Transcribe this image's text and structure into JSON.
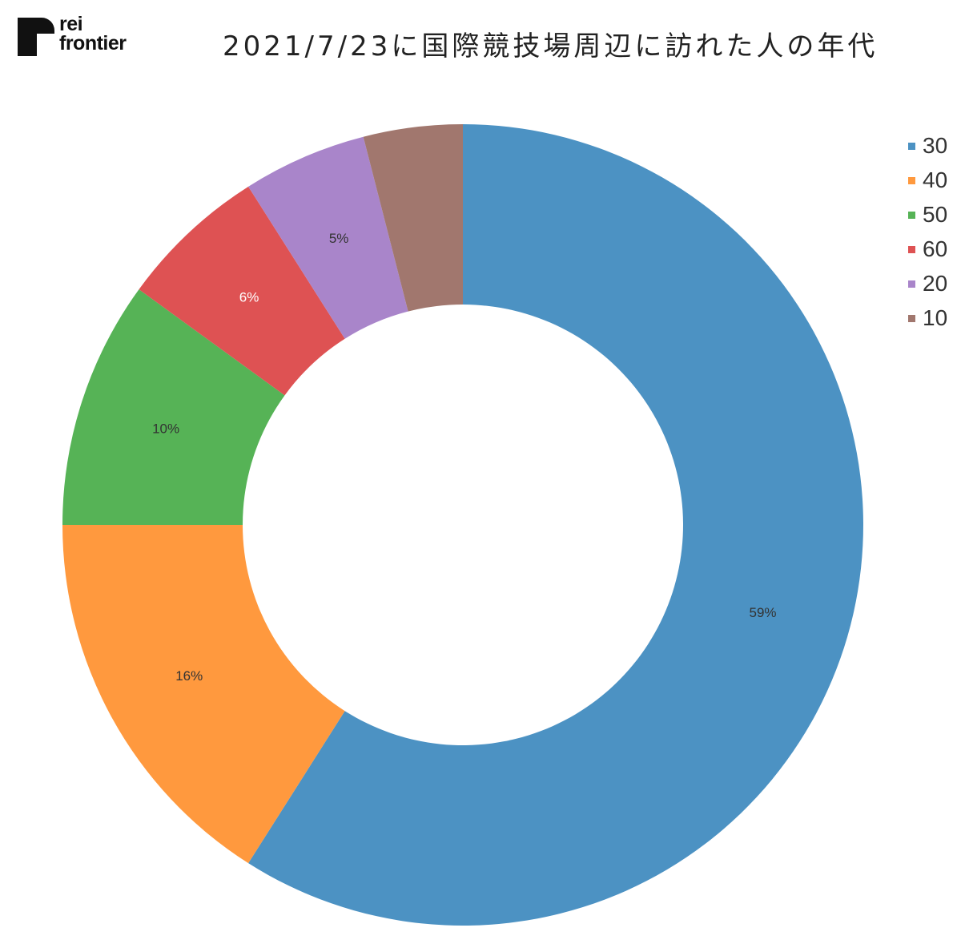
{
  "logo": {
    "line1": "rei",
    "line2": "frontier",
    "color": "#111111"
  },
  "chart_data": {
    "type": "pie",
    "style": "donut",
    "title": "2021/7/23に国際競技場周辺に訪れた人の年代",
    "legend_position": "right",
    "slices": [
      {
        "label": "30",
        "value": 59,
        "display": "59%",
        "color": "#4c92c3"
      },
      {
        "label": "40",
        "value": 16,
        "display": "16%",
        "color": "#ff993e"
      },
      {
        "label": "50",
        "value": 10,
        "display": "10%",
        "color": "#56b356"
      },
      {
        "label": "60",
        "value": 6,
        "display": "6%",
        "color": "#de5253"
      },
      {
        "label": "20",
        "value": 5,
        "display": "5%",
        "color": "#a985ca"
      },
      {
        "label": "10",
        "value": 4,
        "display": "",
        "color": "#a1776e"
      }
    ]
  }
}
